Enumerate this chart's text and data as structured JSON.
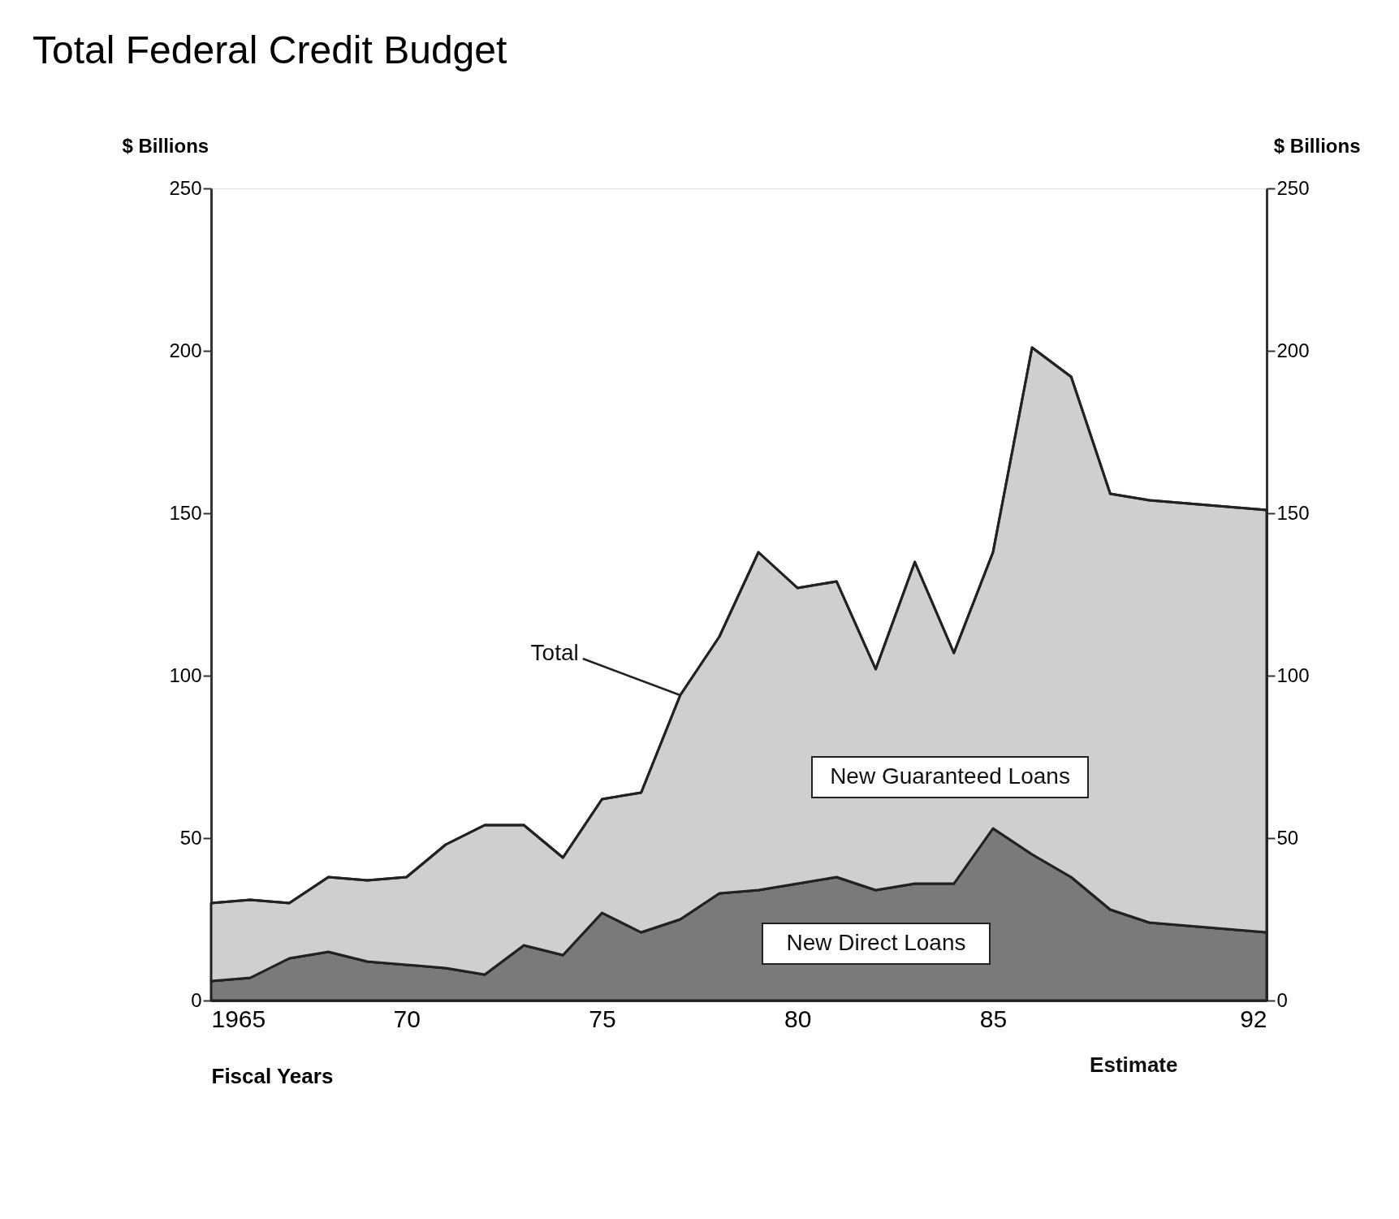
{
  "chart_data": {
    "type": "area",
    "stacked": true,
    "title": "Total Federal Credit Budget",
    "xlabel": "Fiscal Years",
    "ylabel": "$ Billions",
    "y2label": "$ Billions",
    "x": [
      1965,
      1966,
      1967,
      1968,
      1969,
      1970,
      1971,
      1972,
      1973,
      1974,
      1975,
      1976,
      1977,
      1978,
      1979,
      1980,
      1981,
      1982,
      1983,
      1984,
      1985,
      1986,
      1987,
      1988,
      1989,
      1990,
      1991,
      1992
    ],
    "series": [
      {
        "name": "New Direct Loans",
        "color": "#7a7a7a",
        "values": [
          6,
          7,
          13,
          15,
          12,
          11,
          10,
          8,
          17,
          14,
          27,
          21,
          25,
          33,
          34,
          36,
          38,
          34,
          36,
          36,
          53,
          45,
          38,
          28,
          24,
          23,
          22,
          21
        ]
      },
      {
        "name": "New Guaranteed Loans",
        "color": "#cfcfcf",
        "values": [
          24,
          24,
          17,
          23,
          25,
          27,
          38,
          46,
          37,
          30,
          35,
          43,
          69,
          79,
          104,
          91,
          91,
          68,
          99,
          71,
          85,
          156,
          154,
          128,
          130,
          130,
          130,
          130
        ]
      }
    ],
    "xlim": [
      1965,
      1992
    ],
    "xticks": [
      {
        "value": 1965,
        "label": "1965"
      },
      {
        "value": 1970,
        "label": "70"
      },
      {
        "value": 1975,
        "label": "75"
      },
      {
        "value": 1980,
        "label": "80"
      },
      {
        "value": 1985,
        "label": "85"
      },
      {
        "value": 1992,
        "label": "92"
      }
    ],
    "ylim": [
      0,
      250
    ],
    "yticks": [
      0,
      50,
      100,
      150,
      200,
      250
    ],
    "y2lim": [
      0,
      250
    ],
    "y2ticks": [
      0,
      50,
      100,
      150,
      200,
      250
    ],
    "grid": false,
    "annotations": [
      {
        "text": "Total",
        "x": 1977,
        "y": 94
      },
      "Estimate"
    ]
  }
}
